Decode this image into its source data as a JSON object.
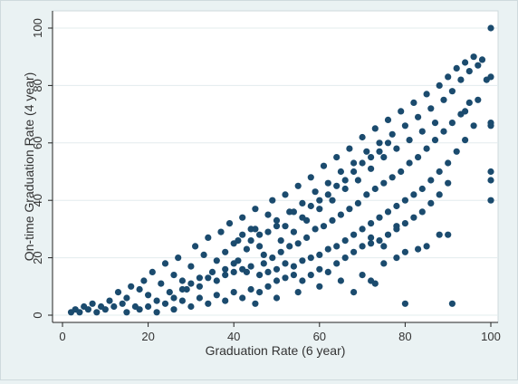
{
  "chart_data": {
    "type": "scatter",
    "title": "",
    "xlabel": "Graduation Rate (6 year)",
    "ylabel": "On-time Graduation Rate (4 year)",
    "xlim": [
      0,
      100
    ],
    "ylim": [
      0,
      100
    ],
    "xticks": [
      "0",
      "20",
      "40",
      "60",
      "80",
      "100"
    ],
    "yticks": [
      "0",
      "20",
      "40",
      "60",
      "80",
      "100"
    ],
    "grid": "horizontal",
    "marker_color": "#1b4b6e",
    "background_color": "#eaf2f3",
    "plot_background_color": "#ffffff",
    "series": [
      {
        "values": [
          [
            2,
            1
          ],
          [
            3,
            2
          ],
          [
            4,
            1
          ],
          [
            5,
            3
          ],
          [
            6,
            2
          ],
          [
            7,
            4
          ],
          [
            8,
            1
          ],
          [
            9,
            3
          ],
          [
            10,
            2
          ],
          [
            11,
            5
          ],
          [
            12,
            3
          ],
          [
            13,
            8
          ],
          [
            14,
            4
          ],
          [
            15,
            6
          ],
          [
            16,
            10
          ],
          [
            17,
            3
          ],
          [
            18,
            9
          ],
          [
            19,
            12
          ],
          [
            20,
            7
          ],
          [
            21,
            15
          ],
          [
            22,
            5
          ],
          [
            23,
            11
          ],
          [
            24,
            18
          ],
          [
            25,
            8
          ],
          [
            26,
            14
          ],
          [
            27,
            20
          ],
          [
            28,
            12
          ],
          [
            29,
            9
          ],
          [
            30,
            17
          ],
          [
            31,
            24
          ],
          [
            32,
            13
          ],
          [
            33,
            21
          ],
          [
            34,
            27
          ],
          [
            35,
            15
          ],
          [
            36,
            19
          ],
          [
            37,
            29
          ],
          [
            38,
            22
          ],
          [
            39,
            32
          ],
          [
            40,
            18
          ],
          [
            41,
            26
          ],
          [
            42,
            34
          ],
          [
            43,
            23
          ],
          [
            44,
            30
          ],
          [
            45,
            37
          ],
          [
            46,
            28
          ],
          [
            47,
            21
          ],
          [
            48,
            35
          ],
          [
            49,
            40
          ],
          [
            50,
            31
          ],
          [
            51,
            26
          ],
          [
            52,
            42
          ],
          [
            53,
            36
          ],
          [
            54,
            29
          ],
          [
            55,
            45
          ],
          [
            56,
            39
          ],
          [
            57,
            33
          ],
          [
            58,
            48
          ],
          [
            59,
            43
          ],
          [
            60,
            37
          ],
          [
            61,
            52
          ],
          [
            62,
            46
          ],
          [
            63,
            40
          ],
          [
            64,
            55
          ],
          [
            65,
            50
          ],
          [
            66,
            44
          ],
          [
            67,
            58
          ],
          [
            68,
            53
          ],
          [
            69,
            47
          ],
          [
            70,
            62
          ],
          [
            71,
            57
          ],
          [
            72,
            51
          ],
          [
            73,
            65
          ],
          [
            74,
            60
          ],
          [
            75,
            55
          ],
          [
            76,
            68
          ],
          [
            77,
            63
          ],
          [
            78,
            58
          ],
          [
            79,
            71
          ],
          [
            80,
            66
          ],
          [
            81,
            61
          ],
          [
            82,
            74
          ],
          [
            83,
            69
          ],
          [
            84,
            64
          ],
          [
            85,
            77
          ],
          [
            86,
            72
          ],
          [
            87,
            67
          ],
          [
            88,
            80
          ],
          [
            89,
            75
          ],
          [
            90,
            83
          ],
          [
            91,
            78
          ],
          [
            92,
            86
          ],
          [
            93,
            82
          ],
          [
            94,
            88
          ],
          [
            95,
            85
          ],
          [
            96,
            90
          ],
          [
            97,
            87
          ],
          [
            98,
            89
          ],
          [
            99,
            82
          ],
          [
            40,
            25
          ],
          [
            42,
            28
          ],
          [
            44,
            26
          ],
          [
            45,
            30
          ],
          [
            46,
            24
          ],
          [
            48,
            29
          ],
          [
            50,
            33
          ],
          [
            52,
            31
          ],
          [
            54,
            36
          ],
          [
            56,
            34
          ],
          [
            58,
            38
          ],
          [
            60,
            40
          ],
          [
            62,
            42
          ],
          [
            64,
            45
          ],
          [
            66,
            47
          ],
          [
            68,
            50
          ],
          [
            70,
            53
          ],
          [
            72,
            55
          ],
          [
            74,
            57
          ],
          [
            76,
            60
          ],
          [
            38,
            16
          ],
          [
            41,
            19
          ],
          [
            43,
            15
          ],
          [
            47,
            18
          ],
          [
            49,
            20
          ],
          [
            51,
            22
          ],
          [
            53,
            24
          ],
          [
            55,
            25
          ],
          [
            57,
            27
          ],
          [
            59,
            30
          ],
          [
            61,
            31
          ],
          [
            63,
            33
          ],
          [
            65,
            35
          ],
          [
            67,
            37
          ],
          [
            69,
            39
          ],
          [
            71,
            42
          ],
          [
            73,
            44
          ],
          [
            75,
            46
          ],
          [
            77,
            48
          ],
          [
            79,
            50
          ],
          [
            81,
            53
          ],
          [
            83,
            55
          ],
          [
            85,
            58
          ],
          [
            87,
            61
          ],
          [
            89,
            64
          ],
          [
            91,
            67
          ],
          [
            93,
            70
          ],
          [
            95,
            74
          ],
          [
            26,
            6
          ],
          [
            28,
            9
          ],
          [
            30,
            11
          ],
          [
            32,
            10
          ],
          [
            34,
            13
          ],
          [
            36,
            12
          ],
          [
            38,
            14
          ],
          [
            40,
            15
          ],
          [
            42,
            16
          ],
          [
            44,
            17
          ],
          [
            46,
            14
          ],
          [
            48,
            15
          ],
          [
            50,
            16
          ],
          [
            52,
            18
          ],
          [
            54,
            17
          ],
          [
            56,
            19
          ],
          [
            58,
            20
          ],
          [
            60,
            21
          ],
          [
            62,
            23
          ],
          [
            64,
            24
          ],
          [
            66,
            26
          ],
          [
            68,
            28
          ],
          [
            70,
            30
          ],
          [
            72,
            32
          ],
          [
            74,
            34
          ],
          [
            76,
            36
          ],
          [
            78,
            38
          ],
          [
            80,
            40
          ],
          [
            82,
            42
          ],
          [
            84,
            44
          ],
          [
            86,
            47
          ],
          [
            88,
            50
          ],
          [
            90,
            53
          ],
          [
            92,
            57
          ],
          [
            94,
            61
          ],
          [
            96,
            66
          ],
          [
            15,
            1
          ],
          [
            18,
            2
          ],
          [
            20,
            3
          ],
          [
            22,
            1
          ],
          [
            24,
            4
          ],
          [
            26,
            2
          ],
          [
            28,
            5
          ],
          [
            30,
            3
          ],
          [
            32,
            6
          ],
          [
            34,
            4
          ],
          [
            36,
            7
          ],
          [
            38,
            5
          ],
          [
            40,
            8
          ],
          [
            42,
            6
          ],
          [
            44,
            9
          ],
          [
            46,
            8
          ],
          [
            48,
            10
          ],
          [
            50,
            12
          ],
          [
            52,
            13
          ],
          [
            54,
            14
          ],
          [
            56,
            12
          ],
          [
            58,
            14
          ],
          [
            60,
            16
          ],
          [
            62,
            15
          ],
          [
            64,
            18
          ],
          [
            66,
            20
          ],
          [
            68,
            22
          ],
          [
            70,
            24
          ],
          [
            72,
            25
          ],
          [
            74,
            26
          ],
          [
            76,
            28
          ],
          [
            78,
            30
          ],
          [
            80,
            32
          ],
          [
            82,
            34
          ],
          [
            84,
            36
          ],
          [
            86,
            39
          ],
          [
            88,
            42
          ],
          [
            90,
            46
          ],
          [
            45,
            4
          ],
          [
            50,
            6
          ],
          [
            55,
            8
          ],
          [
            60,
            10
          ],
          [
            65,
            12
          ],
          [
            70,
            14
          ],
          [
            72,
            12
          ],
          [
            75,
            18
          ],
          [
            78,
            20
          ],
          [
            80,
            22
          ],
          [
            85,
            24
          ],
          [
            90,
            28
          ],
          [
            68,
            8
          ],
          [
            73,
            11
          ],
          [
            100,
            100
          ],
          [
            100,
            83
          ],
          [
            100,
            67
          ],
          [
            100,
            66
          ],
          [
            100,
            50
          ],
          [
            100,
            47
          ],
          [
            100,
            40
          ],
          [
            80,
            4
          ],
          [
            91,
            4
          ],
          [
            72,
            27
          ],
          [
            78,
            31
          ],
          [
            83,
            23
          ],
          [
            75,
            24
          ],
          [
            88,
            28
          ],
          [
            97,
            75
          ],
          [
            94,
            71
          ]
        ]
      }
    ]
  }
}
